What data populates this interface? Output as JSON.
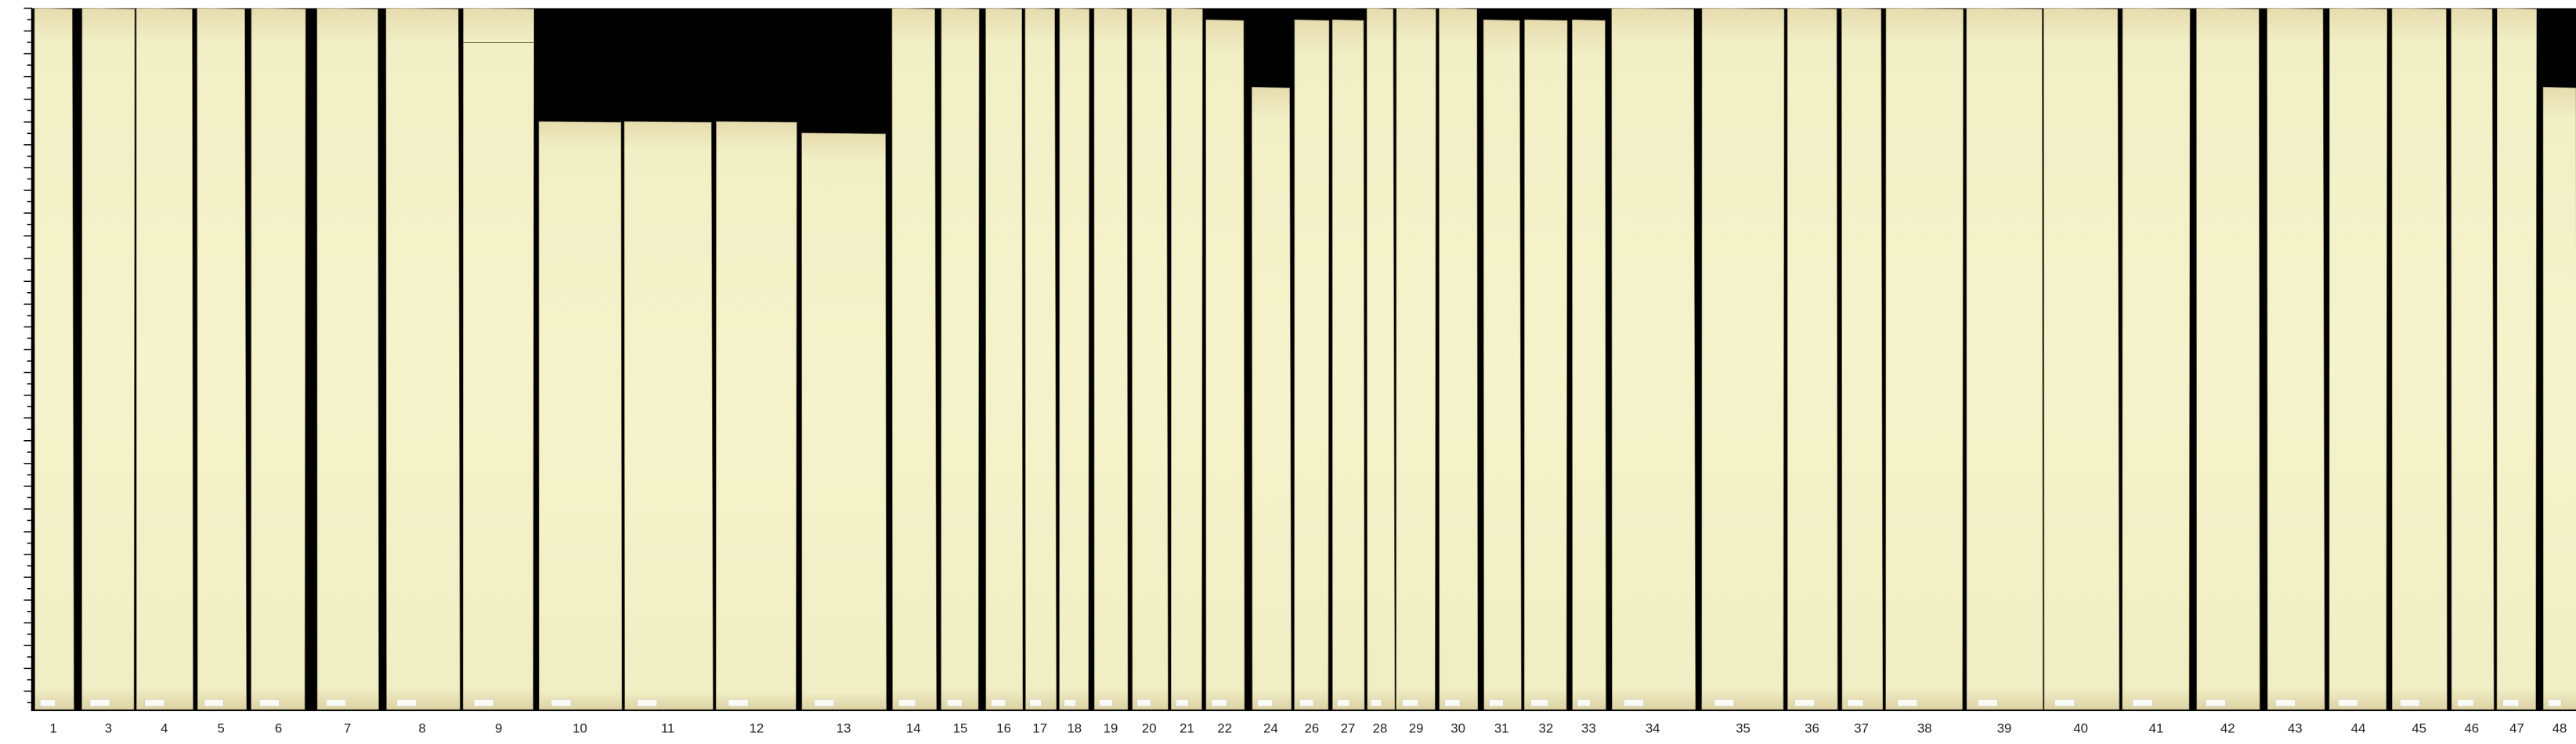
{
  "strip_labels": [
    "1",
    "3",
    "4",
    "5",
    "6",
    "7",
    "8",
    "9",
    "10",
    "11",
    "12",
    "13",
    "14",
    "15",
    "16",
    "17",
    "18",
    "19",
    "20",
    "21",
    "22",
    "24",
    "26",
    "27",
    "28",
    "29",
    "30",
    "31",
    "32",
    "33",
    "34",
    "35",
    "36",
    "37",
    "38",
    "39",
    "40",
    "41",
    "42",
    "43",
    "44",
    "45",
    "46",
    "47",
    "48"
  ],
  "colors": {
    "background": "#000000",
    "paper": "#f3f2c8",
    "paper_stain": "#d9c99a",
    "axis": "#000000",
    "label_text": "#222222"
  }
}
